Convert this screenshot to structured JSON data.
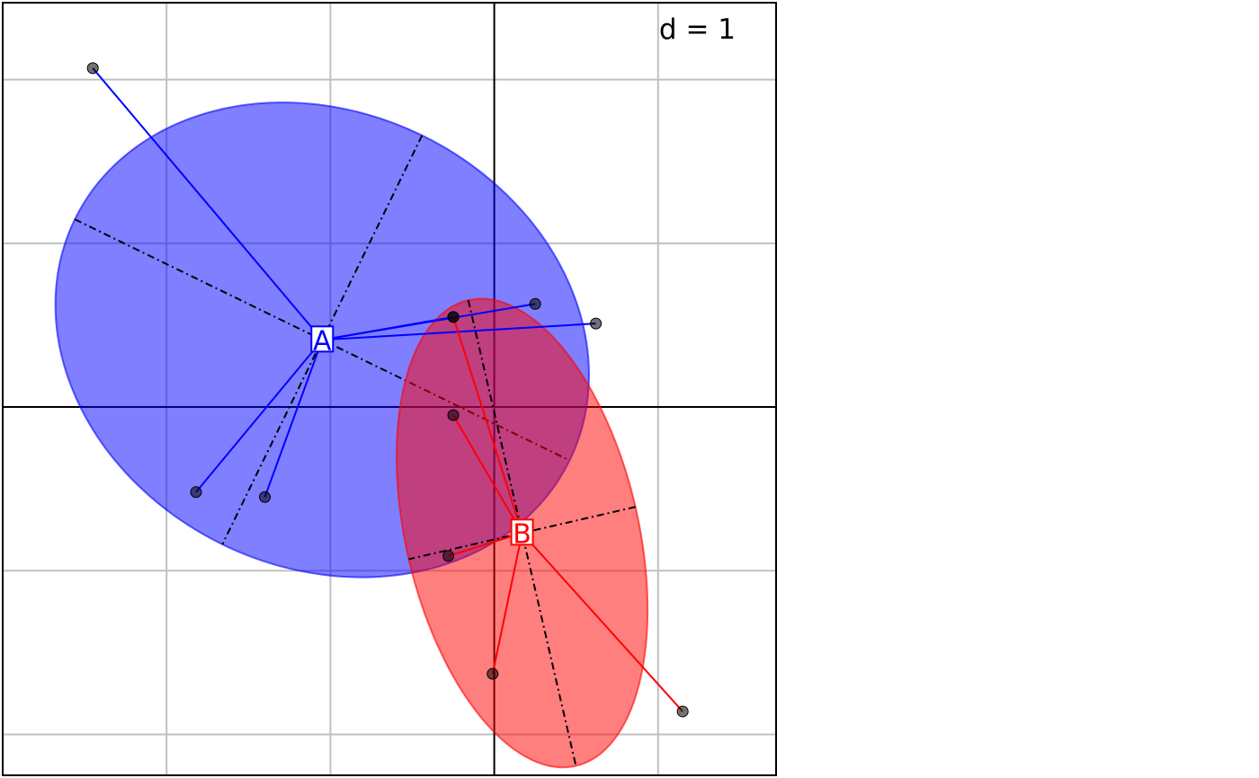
{
  "chart_data": {
    "type": "scatter",
    "subtype": "class-ellipse-star-plot",
    "scale_label": "d = 1",
    "xlim": [
      -3,
      1.72
    ],
    "ylim": [
      -2.25,
      2.47
    ],
    "grid": true,
    "grid_step": 1,
    "axes_through_origin": true,
    "groups": [
      {
        "label": "A",
        "color": "#0000FF",
        "fill": "#0000FF",
        "fill_opacity": 0.5,
        "center": [
          -1.05,
          0.41
        ],
        "points": [
          [
            -2.45,
            2.07
          ],
          [
            -0.25,
            0.55
          ],
          [
            0.25,
            0.63
          ],
          [
            0.62,
            0.51
          ],
          [
            -1.82,
            -0.52
          ],
          [
            -1.4,
            -0.55
          ]
        ],
        "ellipse": {
          "center": [
            -1.05,
            0.41
          ],
          "rx": 1.68,
          "ry": 1.39,
          "angle_deg": -26
        }
      },
      {
        "label": "B",
        "color": "#FF0000",
        "fill": "#FF0000",
        "fill_opacity": 0.5,
        "center": [
          0.17,
          -0.77
        ],
        "points": [
          [
            -0.25,
            0.55
          ],
          [
            -0.25,
            -0.05
          ],
          [
            -0.28,
            -0.91
          ],
          [
            -0.01,
            -1.63
          ],
          [
            1.15,
            -1.86
          ]
        ],
        "ellipse": {
          "center": [
            0.17,
            -0.77
          ],
          "rx": 1.46,
          "ry": 0.71,
          "angle_deg": -77
        }
      }
    ]
  }
}
